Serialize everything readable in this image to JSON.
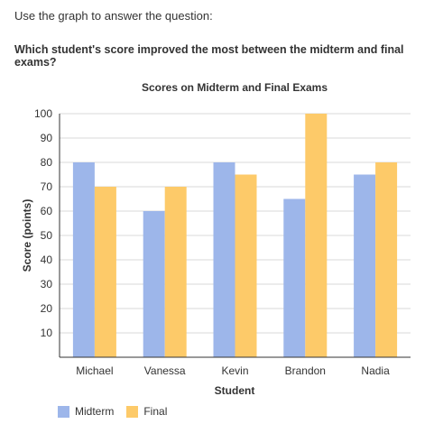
{
  "instruction": "Use the graph to answer the question:",
  "question": "Which student's score improved the most between the midterm and final exams?",
  "chart_data": {
    "type": "bar",
    "title": "Scores on Midterm and Final Exams",
    "xlabel": "Student",
    "ylabel": "Score (points)",
    "categories": [
      "Michael",
      "Vanessa",
      "Kevin",
      "Brandon",
      "Nadia"
    ],
    "series": [
      {
        "name": "Midterm",
        "values": [
          80,
          60,
          80,
          65,
          75
        ],
        "color": "#9db6ea"
      },
      {
        "name": "Final",
        "values": [
          70,
          70,
          75,
          100,
          80
        ],
        "color": "#fdca69"
      }
    ],
    "ylim": [
      0,
      100
    ],
    "yticks": [
      10,
      20,
      30,
      40,
      50,
      60,
      70,
      80,
      90,
      100
    ],
    "grid": true,
    "legend_position": "bottom-left"
  }
}
